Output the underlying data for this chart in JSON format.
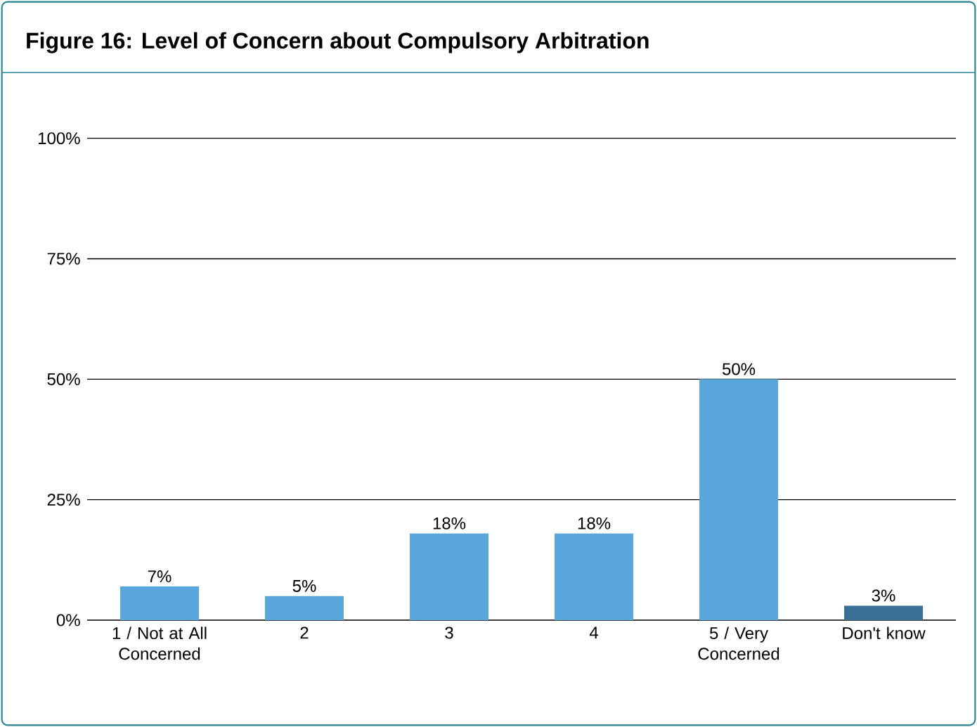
{
  "chart_data": {
    "type": "bar",
    "title": "Figure 16:   Level of Concern about Compulsory Arbitration",
    "categories": [
      "1 / Not at All Concerned",
      "2",
      "3",
      "4",
      "5 / Very Concerned",
      "Don't know"
    ],
    "values": [
      7,
      5,
      18,
      18,
      50,
      3
    ],
    "value_labels": [
      "7%",
      "5%",
      "18%",
      "18%",
      "50%",
      "3%"
    ],
    "colors": [
      "#5aa7db",
      "#5aa7db",
      "#5aa7db",
      "#5aa7db",
      "#5aa7db",
      "#3a7096"
    ],
    "ylim": [
      0,
      100
    ],
    "yticks": [
      {
        "value": 0,
        "label": "0%"
      },
      {
        "value": 25,
        "label": "25%"
      },
      {
        "value": 50,
        "label": "50%"
      },
      {
        "value": 75,
        "label": "75%"
      },
      {
        "value": 100,
        "label": "100%"
      }
    ],
    "grid": "y"
  }
}
